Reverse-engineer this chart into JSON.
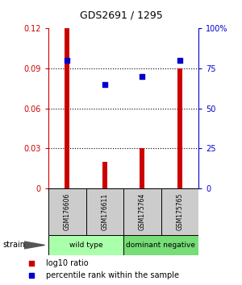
{
  "title": "GDS2691 / 1295",
  "categories": [
    "GSM176606",
    "GSM176611",
    "GSM175764",
    "GSM175765"
  ],
  "bar_values": [
    0.12,
    0.02,
    0.03,
    0.09
  ],
  "percentile_values": [
    80,
    65,
    70,
    80
  ],
  "bar_color": "#cc0000",
  "point_color": "#0000cc",
  "ylim_left": [
    0,
    0.12
  ],
  "ylim_right": [
    0,
    100
  ],
  "yticks_left": [
    0,
    0.03,
    0.06,
    0.09,
    0.12
  ],
  "ytick_labels_left": [
    "0",
    "0.03",
    "0.06",
    "0.09",
    "0.12"
  ],
  "yticks_right": [
    0,
    25,
    50,
    75,
    100
  ],
  "ytick_labels_right": [
    "0",
    "25",
    "50",
    "75",
    "100%"
  ],
  "groups": [
    {
      "label": "wild type",
      "indices": [
        0,
        1
      ],
      "color": "#aaffaa"
    },
    {
      "label": "dominant negative",
      "indices": [
        2,
        3
      ],
      "color": "#77dd77"
    }
  ],
  "strain_label": "strain",
  "legend_bar_label": "log10 ratio",
  "legend_point_label": "percentile rank within the sample",
  "grid_values": [
    0.03,
    0.06,
    0.09
  ]
}
